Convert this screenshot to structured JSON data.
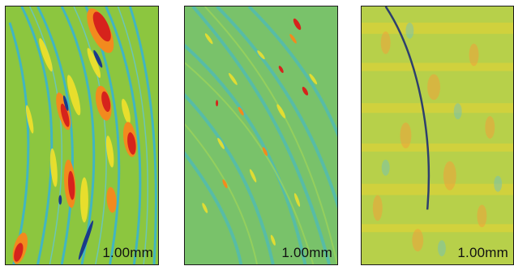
{
  "panels": [
    {
      "scale_label": "1.00mm"
    },
    {
      "scale_label": "1.00mm"
    },
    {
      "scale_label": "1.00mm"
    }
  ],
  "colors": {
    "background": "#8cc63f",
    "low": "#2aa6d6",
    "deep_low": "#1b3a8a",
    "mid_high": "#f2e12a",
    "high": "#f28a1e",
    "peak": "#d6231c"
  }
}
